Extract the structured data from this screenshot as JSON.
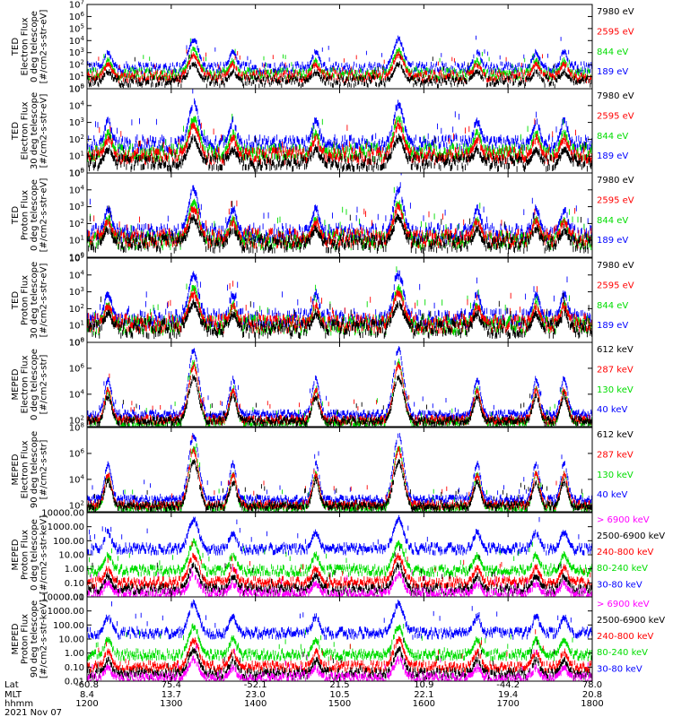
{
  "chart_data": {
    "type": "line",
    "date_label": "2021 Nov 07",
    "x_rows": [
      {
        "label": "Lat",
        "values": [
          "-60.8",
          "75.4",
          "-52.1",
          "21.5",
          "10.9",
          "-44.2",
          "78.0"
        ]
      },
      {
        "label": "MLT",
        "values": [
          "8.4",
          "13.7",
          "23.0",
          "10.5",
          "22.1",
          "19.4",
          "20.8"
        ]
      },
      {
        "label": "hhmm",
        "values": [
          "1200",
          "1300",
          "1400",
          "1500",
          "1600",
          "1700",
          "1800"
        ]
      }
    ],
    "x_minutes": [
      720,
      780,
      840,
      900,
      960,
      1020,
      1080
    ],
    "panels": [
      {
        "ylabel": [
          "TED",
          "Electron Flux",
          "0 deg telescope",
          "[#/cm2-s-str-eV]"
        ],
        "scale": "log",
        "ylim_exp": [
          0,
          7
        ],
        "tick_labels": [
          "10^0",
          "10^1",
          "10^2",
          "10^3",
          "10^4",
          "10^5",
          "10^6",
          "10^7"
        ],
        "legend": [
          {
            "label": "7980 eV",
            "color": "#000000"
          },
          {
            "label": "2595 eV",
            "color": "#ff0000"
          },
          {
            "label": "844 eV",
            "color": "#00dd00"
          },
          {
            "label": "189 eV",
            "color": "#0000ff"
          }
        ]
      },
      {
        "ylabel": [
          "TED",
          "Electron Flux",
          "30 deg telescope",
          "[#/cm2-s-str-eV]"
        ],
        "scale": "log",
        "ylim_exp": [
          0,
          5
        ],
        "tick_labels": [
          "10^0",
          "10^1",
          "10^2",
          "10^3",
          "10^4",
          "10^5"
        ],
        "legend": [
          {
            "label": "7980 eV",
            "color": "#000000"
          },
          {
            "label": "2595 eV",
            "color": "#ff0000"
          },
          {
            "label": "844 eV",
            "color": "#00dd00"
          },
          {
            "label": "189 eV",
            "color": "#0000ff"
          }
        ]
      },
      {
        "ylabel": [
          "TED",
          "Proton Flux",
          "0 deg telescope",
          "[#/cm2-s-str-eV]"
        ],
        "scale": "log",
        "ylim_exp": [
          0,
          5
        ],
        "tick_labels": [
          "10^0",
          "10^1",
          "10^2",
          "10^3",
          "10^4",
          "10^5"
        ],
        "legend": [
          {
            "label": "7980 eV",
            "color": "#000000"
          },
          {
            "label": "2595 eV",
            "color": "#ff0000"
          },
          {
            "label": "844 eV",
            "color": "#00dd00"
          },
          {
            "label": "189 eV",
            "color": "#0000ff"
          }
        ]
      },
      {
        "ylabel": [
          "TED",
          "Proton Flux",
          "30 deg telescope",
          "[#/cm2-s-str-eV]"
        ],
        "scale": "log",
        "ylim_exp": [
          0,
          5
        ],
        "tick_labels": [
          "10^0",
          "10^1",
          "10^2",
          "10^3",
          "10^4",
          "10^5"
        ],
        "legend": [
          {
            "label": "7980 eV",
            "color": "#000000"
          },
          {
            "label": "2595 eV",
            "color": "#ff0000"
          },
          {
            "label": "844 eV",
            "color": "#00dd00"
          },
          {
            "label": "189 eV",
            "color": "#0000ff"
          }
        ]
      },
      {
        "ylabel": [
          "MEPED",
          "Electron Flux",
          "0 deg telescope",
          "[#/cm2-s-str]"
        ],
        "scale": "log",
        "ylim_exp": [
          1.5,
          8
        ],
        "tick_labels": [
          "10^2",
          "10^4",
          "10^6",
          "10^8"
        ],
        "tick_exps": [
          2,
          4,
          6,
          8
        ],
        "legend": [
          {
            "label": "612 keV",
            "color": "#000000"
          },
          {
            "label": "287 keV",
            "color": "#ff0000"
          },
          {
            "label": "130 keV",
            "color": "#00dd00"
          },
          {
            "label": "40 keV",
            "color": "#0000ff"
          }
        ]
      },
      {
        "ylabel": [
          "MEPED",
          "Electron Flux",
          "90 deg telescope",
          "[#/cm2-s-str]"
        ],
        "scale": "log",
        "ylim_exp": [
          1.5,
          8
        ],
        "tick_labels": [
          "10^2",
          "10^4",
          "10^6",
          "10^8"
        ],
        "tick_exps": [
          2,
          4,
          6,
          8
        ],
        "legend": [
          {
            "label": "612 keV",
            "color": "#000000"
          },
          {
            "label": "287 keV",
            "color": "#ff0000"
          },
          {
            "label": "130 keV",
            "color": "#00dd00"
          },
          {
            "label": "40 keV",
            "color": "#0000ff"
          }
        ]
      },
      {
        "ylabel": [
          "MEPED",
          "Proton Flux",
          "0 deg telescope",
          "[#/cm2-s-str-keV]"
        ],
        "scale": "log",
        "ylim_exp": [
          -2,
          4
        ],
        "tick_labels": [
          "0.01",
          "0.10",
          "1.00",
          "10.00",
          "100.00",
          "1000.00",
          "10000.00"
        ],
        "tick_exps": [
          -2,
          -1,
          0,
          1,
          2,
          3,
          4
        ],
        "legend": [
          {
            "label": "> 6900 keV",
            "color": "#ff00ff"
          },
          {
            "label": "2500-6900 keV",
            "color": "#000000"
          },
          {
            "label": "240-800 keV",
            "color": "#ff0000"
          },
          {
            "label": "80-240 keV",
            "color": "#00dd00"
          },
          {
            "label": "30-80 keV",
            "color": "#0000ff"
          }
        ]
      },
      {
        "ylabel": [
          "MEPED",
          "Proton Flux",
          "90 deg telescope",
          "[#/cm2-s-str-keV]"
        ],
        "scale": "log",
        "ylim_exp": [
          -2,
          4
        ],
        "tick_labels": [
          "0.01",
          "0.10",
          "1.00",
          "10.00",
          "100.00",
          "1000.00",
          "10000.00"
        ],
        "tick_exps": [
          -2,
          -1,
          0,
          1,
          2,
          3,
          4
        ],
        "legend": [
          {
            "label": "> 6900 keV",
            "color": "#ff00ff"
          },
          {
            "label": "2500-6900 keV",
            "color": "#000000"
          },
          {
            "label": "240-800 keV",
            "color": "#ff0000"
          },
          {
            "label": "80-240 keV",
            "color": "#00dd00"
          },
          {
            "label": "30-80 keV",
            "color": "#0000ff"
          }
        ]
      }
    ],
    "pass_centers_minutes": [
      735,
      796,
      824,
      883,
      942,
      998,
      1040,
      1060
    ],
    "grid": false
  }
}
